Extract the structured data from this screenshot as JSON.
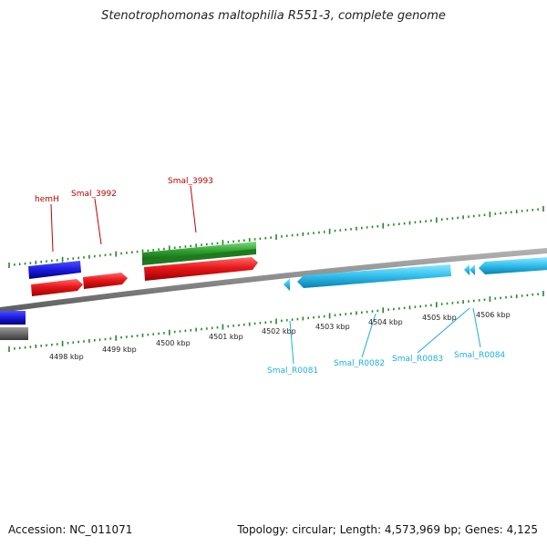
{
  "title": "Stenotrophomonas maltophilia R551-3, complete genome",
  "footer": {
    "accession": "Accession: NC_011071",
    "topology": "Topology: circular; Length: 4,573,969 bp; Genes: 4,125"
  },
  "scale_labels": [
    "4498 kbp",
    "4499 kbp",
    "4500 kbp",
    "4501 kbp",
    "4502 kbp",
    "4503 kbp",
    "4504 kbp",
    "4505 kbp",
    "4506 kbp"
  ],
  "gene_labels": {
    "forward": [
      "hemH",
      "Smal_3992",
      "Smal_3993"
    ],
    "reverse": [
      "Smal_R0081",
      "Smal_R0082",
      "Smal_R0083",
      "Smal_R0084"
    ]
  },
  "colors": {
    "forward_gene": "#e8171a",
    "forward_label": "#c00000",
    "reverse_gene": "#35c3f0",
    "reverse_label": "#1ab0e0",
    "blue_feature": "#1a1ae0",
    "green_feature": "#2fa02f",
    "backbone": "#8a8a8a",
    "ticks": "#1f8a1f"
  }
}
